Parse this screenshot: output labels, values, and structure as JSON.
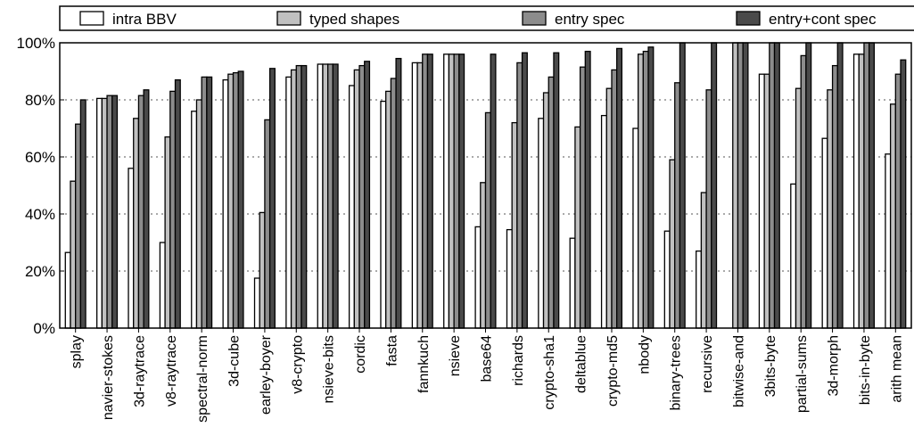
{
  "chart_data": {
    "type": "bar",
    "title": "",
    "xlabel": "",
    "ylabel": "",
    "ylim": [
      0,
      100
    ],
    "yticks": [
      "0%",
      "20%",
      "40%",
      "60%",
      "80%",
      "100%"
    ],
    "grid": "horizontal-dotted",
    "legend_position": "top",
    "categories": [
      "splay",
      "navier-stokes",
      "3d-raytrace",
      "v8-raytrace",
      "spectral-norm",
      "3d-cube",
      "earley-boyer",
      "v8-crypto",
      "nsieve-bits",
      "cordic",
      "fasta",
      "fannkuch",
      "nsieve",
      "base64",
      "richards",
      "crypto-sha1",
      "deltablue",
      "crypto-md5",
      "nbody",
      "binary-trees",
      "recursive",
      "bitwise-and",
      "3bits-byte",
      "partial-sums",
      "3d-morph",
      "bits-in-byte",
      "arith mean"
    ],
    "series": [
      {
        "name": "intra BBV",
        "color": "#ffffff",
        "values": [
          26.5,
          80.5,
          56,
          30,
          76,
          87,
          17.5,
          88,
          92.5,
          85,
          79.5,
          93,
          96,
          35.5,
          34.5,
          73.5,
          31.5,
          74.5,
          70,
          34,
          27,
          0,
          89,
          50.5,
          66.5,
          96,
          61
        ]
      },
      {
        "name": "typed shapes",
        "color": "#c0c0c0",
        "values": [
          51.5,
          80.5,
          73.5,
          67,
          80,
          89,
          40.5,
          90.5,
          92.5,
          90.5,
          83,
          93,
          96,
          51,
          72,
          82.5,
          70.5,
          84,
          96,
          59,
          47.5,
          100,
          89,
          84,
          83.5,
          96,
          78.5
        ]
      },
      {
        "name": "entry spec",
        "color": "#8c8c8c",
        "values": [
          71.5,
          81.5,
          81.5,
          83,
          88,
          89.5,
          73,
          92,
          92.5,
          92,
          87.5,
          96,
          96,
          75.5,
          93,
          88,
          91.5,
          90.5,
          97,
          86,
          83.5,
          100,
          100,
          95.5,
          92,
          100,
          89
        ]
      },
      {
        "name": "entry+cont spec",
        "color": "#4a4a4a",
        "values": [
          80,
          81.5,
          83.5,
          87,
          88,
          90,
          91,
          92,
          92.5,
          93.5,
          94.5,
          96,
          96,
          96,
          96.5,
          96.5,
          97,
          98,
          98.5,
          100,
          100,
          100,
          100,
          100,
          100,
          100,
          94
        ]
      }
    ]
  }
}
